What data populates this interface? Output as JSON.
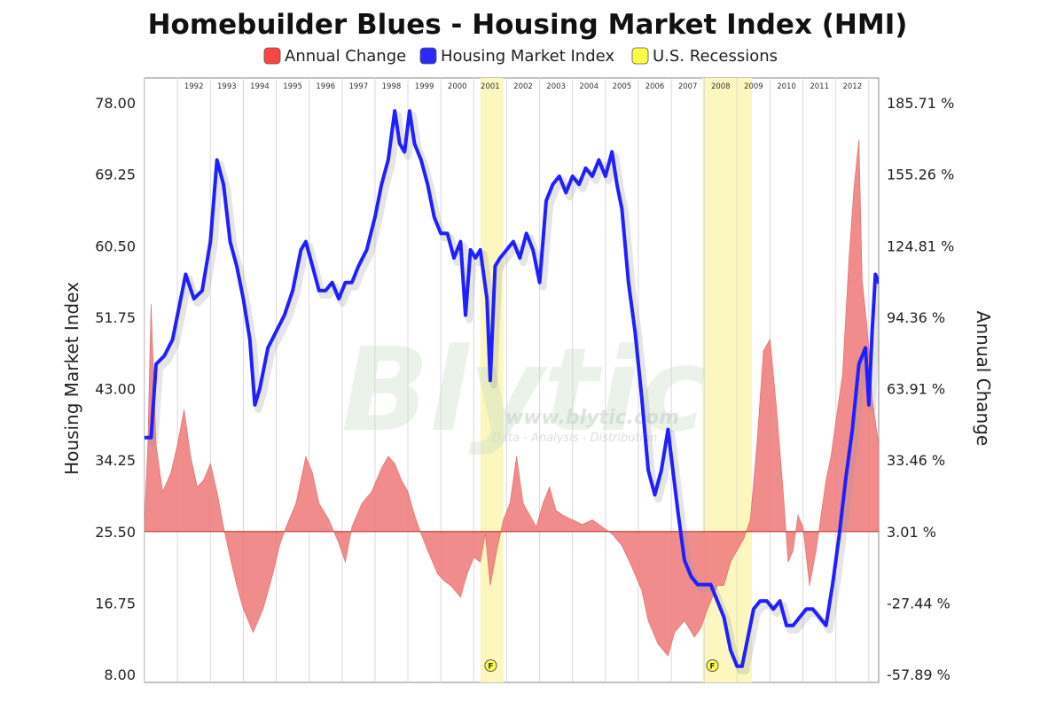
{
  "chart_data": {
    "type": "line",
    "title": "Homebuilder Blues - Housing Market Index (HMI)",
    "legend": [
      {
        "label": "Annual Change",
        "color": "#ff4444"
      },
      {
        "label": "Housing Market Index",
        "color": "#2a2aff"
      },
      {
        "label": "U.S. Recessions",
        "color": "#ffff44"
      }
    ],
    "legend_placement": "top",
    "ylabel_left": "Housing Market Index",
    "ylabel_right": "Annual Change",
    "ylim_left": [
      8,
      78
    ],
    "ylim_right": [
      -57.89,
      185.71
    ],
    "yticks_left": [
      "78.00",
      "69.25",
      "60.50",
      "51.75",
      "43.00",
      "34.25",
      "25.50",
      "16.75",
      "8.00"
    ],
    "yticks_right": [
      "185.71 %",
      "155.26 %",
      "124.81 %",
      "94.36 %",
      "63.91 %",
      "33.46 %",
      "3.01 %",
      "-27.44 %",
      "-57.89 %"
    ],
    "xlim": [
      1991.0,
      2013.3
    ],
    "year_labels": [
      "1992",
      "1993",
      "1994",
      "1995",
      "1996",
      "1997",
      "1998",
      "1999",
      "2000",
      "2001",
      "2002",
      "2003",
      "2004",
      "2005",
      "2006",
      "2007",
      "2008",
      "2009",
      "2010",
      "2011",
      "2012"
    ],
    "grid": "vertical",
    "recessions": [
      {
        "start": 2001.2,
        "end": 2001.9,
        "marker": "F"
      },
      {
        "start": 2007.95,
        "end": 2009.45,
        "marker": "F"
      }
    ],
    "series": [
      {
        "name": "Housing Market Index",
        "color": "#1f1fff",
        "points": [
          [
            1991.0,
            37
          ],
          [
            1991.2,
            37
          ],
          [
            1991.35,
            46
          ],
          [
            1991.6,
            47
          ],
          [
            1991.85,
            49
          ],
          [
            1992.05,
            53
          ],
          [
            1992.25,
            57
          ],
          [
            1992.5,
            54
          ],
          [
            1992.75,
            55
          ],
          [
            1993.0,
            61
          ],
          [
            1993.2,
            71
          ],
          [
            1993.4,
            68
          ],
          [
            1993.6,
            61
          ],
          [
            1993.8,
            58
          ],
          [
            1994.0,
            54
          ],
          [
            1994.2,
            49
          ],
          [
            1994.35,
            41
          ],
          [
            1994.5,
            43
          ],
          [
            1994.75,
            48
          ],
          [
            1995.0,
            50
          ],
          [
            1995.25,
            52
          ],
          [
            1995.5,
            55
          ],
          [
            1995.75,
            60
          ],
          [
            1995.9,
            61
          ],
          [
            1996.1,
            58
          ],
          [
            1996.3,
            55
          ],
          [
            1996.5,
            55
          ],
          [
            1996.7,
            56
          ],
          [
            1996.9,
            54
          ],
          [
            1997.1,
            56
          ],
          [
            1997.3,
            56
          ],
          [
            1997.5,
            58
          ],
          [
            1997.75,
            60
          ],
          [
            1998.0,
            64
          ],
          [
            1998.2,
            68
          ],
          [
            1998.4,
            71
          ],
          [
            1998.6,
            77
          ],
          [
            1998.75,
            73
          ],
          [
            1998.9,
            72
          ],
          [
            1999.05,
            77
          ],
          [
            1999.2,
            73
          ],
          [
            1999.4,
            71
          ],
          [
            1999.6,
            68
          ],
          [
            1999.8,
            64
          ],
          [
            2000.0,
            62
          ],
          [
            2000.2,
            62
          ],
          [
            2000.4,
            59
          ],
          [
            2000.6,
            61
          ],
          [
            2000.75,
            52
          ],
          [
            2000.9,
            60
          ],
          [
            2001.05,
            59
          ],
          [
            2001.2,
            60
          ],
          [
            2001.4,
            54
          ],
          [
            2001.5,
            44
          ],
          [
            2001.65,
            58
          ],
          [
            2001.8,
            59
          ],
          [
            2002.0,
            60
          ],
          [
            2002.2,
            61
          ],
          [
            2002.4,
            59
          ],
          [
            2002.6,
            62
          ],
          [
            2002.8,
            60
          ],
          [
            2003.0,
            56
          ],
          [
            2003.2,
            66
          ],
          [
            2003.4,
            68
          ],
          [
            2003.6,
            69
          ],
          [
            2003.8,
            67
          ],
          [
            2004.0,
            69
          ],
          [
            2004.2,
            68
          ],
          [
            2004.4,
            70
          ],
          [
            2004.6,
            69
          ],
          [
            2004.8,
            71
          ],
          [
            2005.0,
            69
          ],
          [
            2005.2,
            72
          ],
          [
            2005.35,
            68
          ],
          [
            2005.5,
            65
          ],
          [
            2005.7,
            56
          ],
          [
            2005.9,
            50
          ],
          [
            2006.1,
            42
          ],
          [
            2006.3,
            33
          ],
          [
            2006.5,
            30
          ],
          [
            2006.7,
            33
          ],
          [
            2006.9,
            38
          ],
          [
            2007.05,
            33
          ],
          [
            2007.2,
            28
          ],
          [
            2007.4,
            22
          ],
          [
            2007.6,
            20
          ],
          [
            2007.8,
            19
          ],
          [
            2008.0,
            19
          ],
          [
            2008.2,
            19
          ],
          [
            2008.4,
            17
          ],
          [
            2008.6,
            15
          ],
          [
            2008.8,
            11
          ],
          [
            2009.0,
            9
          ],
          [
            2009.15,
            9
          ],
          [
            2009.3,
            12
          ],
          [
            2009.5,
            16
          ],
          [
            2009.7,
            17
          ],
          [
            2009.9,
            17
          ],
          [
            2010.1,
            16
          ],
          [
            2010.3,
            17
          ],
          [
            2010.5,
            14
          ],
          [
            2010.7,
            14
          ],
          [
            2010.9,
            15
          ],
          [
            2011.1,
            16
          ],
          [
            2011.3,
            16
          ],
          [
            2011.5,
            15
          ],
          [
            2011.7,
            14
          ],
          [
            2011.9,
            19
          ],
          [
            2012.1,
            25
          ],
          [
            2012.3,
            32
          ],
          [
            2012.5,
            38
          ],
          [
            2012.7,
            46
          ],
          [
            2012.9,
            48
          ],
          [
            2013.0,
            41
          ],
          [
            2013.1,
            50
          ],
          [
            2013.2,
            57
          ],
          [
            2013.3,
            56
          ]
        ]
      },
      {
        "name": "Annual Change",
        "color": "#f08080",
        "unit": "percent",
        "points": [
          [
            1991.0,
            8
          ],
          [
            1991.1,
            40
          ],
          [
            1991.2,
            100
          ],
          [
            1991.35,
            40
          ],
          [
            1991.55,
            20
          ],
          [
            1991.8,
            28
          ],
          [
            1992.0,
            40
          ],
          [
            1992.2,
            55
          ],
          [
            1992.4,
            35
          ],
          [
            1992.6,
            22
          ],
          [
            1992.8,
            25
          ],
          [
            1993.0,
            32
          ],
          [
            1993.2,
            20
          ],
          [
            1993.4,
            5
          ],
          [
            1993.6,
            -8
          ],
          [
            1993.8,
            -20
          ],
          [
            1994.0,
            -30
          ],
          [
            1994.3,
            -40
          ],
          [
            1994.6,
            -30
          ],
          [
            1994.9,
            -15
          ],
          [
            1995.1,
            -3
          ],
          [
            1995.3,
            5
          ],
          [
            1995.6,
            15
          ],
          [
            1995.9,
            35
          ],
          [
            1996.1,
            28
          ],
          [
            1996.3,
            15
          ],
          [
            1996.6,
            8
          ],
          [
            1996.9,
            -2
          ],
          [
            1997.1,
            -10
          ],
          [
            1997.3,
            5
          ],
          [
            1997.6,
            15
          ],
          [
            1997.9,
            20
          ],
          [
            1998.2,
            30
          ],
          [
            1998.4,
            35
          ],
          [
            1998.6,
            32
          ],
          [
            1998.8,
            25
          ],
          [
            1999.0,
            20
          ],
          [
            1999.2,
            10
          ],
          [
            1999.4,
            2
          ],
          [
            1999.6,
            -5
          ],
          [
            1999.9,
            -15
          ],
          [
            2000.1,
            -18
          ],
          [
            2000.3,
            -20
          ],
          [
            2000.6,
            -25
          ],
          [
            2000.8,
            -15
          ],
          [
            2001.0,
            -8
          ],
          [
            2001.2,
            -10
          ],
          [
            2001.35,
            2
          ],
          [
            2001.5,
            -20
          ],
          [
            2001.7,
            -5
          ],
          [
            2001.9,
            8
          ],
          [
            2002.1,
            15
          ],
          [
            2002.3,
            35
          ],
          [
            2002.5,
            15
          ],
          [
            2002.7,
            10
          ],
          [
            2002.9,
            5
          ],
          [
            2003.1,
            15
          ],
          [
            2003.3,
            22
          ],
          [
            2003.5,
            12
          ],
          [
            2003.7,
            10
          ],
          [
            2004.0,
            8
          ],
          [
            2004.3,
            6
          ],
          [
            2004.6,
            8
          ],
          [
            2004.9,
            5
          ],
          [
            2005.2,
            2
          ],
          [
            2005.5,
            -3
          ],
          [
            2005.8,
            -12
          ],
          [
            2006.1,
            -22
          ],
          [
            2006.3,
            -35
          ],
          [
            2006.6,
            -45
          ],
          [
            2006.9,
            -50
          ],
          [
            2007.1,
            -40
          ],
          [
            2007.4,
            -35
          ],
          [
            2007.7,
            -42
          ],
          [
            2007.9,
            -38
          ],
          [
            2008.1,
            -30
          ],
          [
            2008.4,
            -20
          ],
          [
            2008.6,
            -20
          ],
          [
            2008.8,
            -10
          ],
          [
            2009.0,
            -5
          ],
          [
            2009.2,
            0
          ],
          [
            2009.4,
            8
          ],
          [
            2009.6,
            40
          ],
          [
            2009.8,
            80
          ],
          [
            2010.0,
            85
          ],
          [
            2010.2,
            55
          ],
          [
            2010.4,
            20
          ],
          [
            2010.55,
            -10
          ],
          [
            2010.7,
            -5
          ],
          [
            2010.85,
            10
          ],
          [
            2011.0,
            5
          ],
          [
            2011.2,
            -20
          ],
          [
            2011.4,
            -5
          ],
          [
            2011.55,
            10
          ],
          [
            2011.7,
            25
          ],
          [
            2011.85,
            35
          ],
          [
            2012.0,
            50
          ],
          [
            2012.2,
            70
          ],
          [
            2012.4,
            120
          ],
          [
            2012.55,
            150
          ],
          [
            2012.7,
            170
          ],
          [
            2012.8,
            110
          ],
          [
            2012.95,
            90
          ],
          [
            2013.1,
            60
          ],
          [
            2013.3,
            40
          ]
        ]
      }
    ]
  },
  "watermark": {
    "brand": "Blytic",
    "url": "www.blytic.com",
    "tagline": "Data - Analysis - Distribution"
  }
}
